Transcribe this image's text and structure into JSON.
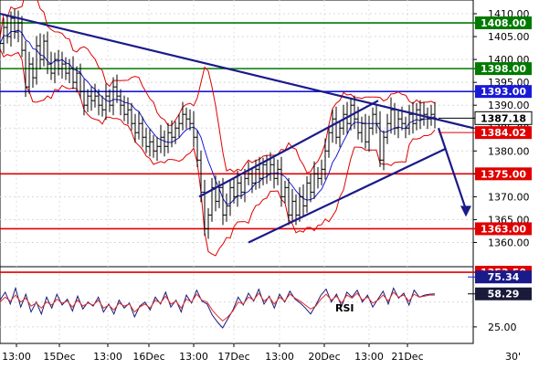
{
  "chart_data": [
    {
      "type": "line",
      "subtype": "candlestick-with-bollinger-bands",
      "x_ticks": [
        "13:00",
        "15Dec",
        "13:00",
        "16Dec",
        "13:00",
        "17Dec",
        "13:00",
        "20Dec",
        "13:00",
        "21Dec"
      ],
      "corner_label": "30'",
      "y_ticks": [
        1410,
        1405,
        1400,
        1395,
        1390,
        1385,
        1380,
        1375,
        1370,
        1365,
        1360
      ],
      "ylim": [
        1356.5,
        1411
      ],
      "grid": true,
      "horizontal_levels": [
        {
          "value": 1408.0,
          "label": "1408.00",
          "color": "#007a00"
        },
        {
          "value": 1398.0,
          "label": "1398.00",
          "color": "#007a00"
        },
        {
          "value": 1393.0,
          "label": "1393.00",
          "color": "#1a1ad6"
        },
        {
          "value": 1375.0,
          "label": "1375.00",
          "color": "#e00000"
        },
        {
          "value": 1363.0,
          "label": "1363.00",
          "color": "#e00000"
        },
        {
          "value": 1353.5,
          "label": "1353.50",
          "color": "#e00000"
        }
      ],
      "price_labels": [
        {
          "value": 1387.18,
          "label": "1387.18",
          "style": "current"
        },
        {
          "value": 1384.02,
          "label": "1384.02",
          "style": "red"
        }
      ],
      "close_series": [
        [
          0,
          1403.5
        ],
        [
          4,
          1407
        ],
        [
          8,
          1405
        ],
        [
          12,
          1409
        ],
        [
          16,
          1406
        ],
        [
          20,
          1408
        ],
        [
          24,
          1402
        ],
        [
          28,
          1394
        ],
        [
          32,
          1399
        ],
        [
          36,
          1396
        ],
        [
          40,
          1403
        ],
        [
          44,
          1400
        ],
        [
          48,
          1404
        ],
        [
          52,
          1399
        ],
        [
          56,
          1397
        ],
        [
          60,
          1400
        ],
        [
          64,
          1398
        ],
        [
          68,
          1399
        ],
        [
          72,
          1397
        ],
        [
          76,
          1398
        ],
        [
          80,
          1395
        ],
        [
          84,
          1397
        ],
        [
          88,
          1393
        ],
        [
          92,
          1390
        ],
        [
          96,
          1392
        ],
        [
          100,
          1391
        ],
        [
          104,
          1392
        ],
        [
          108,
          1390
        ],
        [
          112,
          1389
        ],
        [
          116,
          1392
        ],
        [
          120,
          1390
        ],
        [
          124,
          1394
        ],
        [
          128,
          1392
        ],
        [
          132,
          1390
        ],
        [
          136,
          1388
        ],
        [
          140,
          1389
        ],
        [
          144,
          1386
        ],
        [
          148,
          1384
        ],
        [
          152,
          1386
        ],
        [
          156,
          1383
        ],
        [
          160,
          1381
        ],
        [
          164,
          1382
        ],
        [
          168,
          1380
        ],
        [
          172,
          1381
        ],
        [
          176,
          1383
        ],
        [
          180,
          1381
        ],
        [
          184,
          1384
        ],
        [
          188,
          1383
        ],
        [
          192,
          1385
        ],
        [
          196,
          1386
        ],
        [
          200,
          1388
        ],
        [
          204,
          1387
        ],
        [
          208,
          1386
        ],
        [
          212,
          1383
        ],
        [
          216,
          1378
        ],
        [
          220,
          1371
        ],
        [
          224,
          1363
        ],
        [
          228,
          1366
        ],
        [
          232,
          1372
        ],
        [
          236,
          1369
        ],
        [
          240,
          1372
        ],
        [
          244,
          1366
        ],
        [
          248,
          1368
        ],
        [
          252,
          1372
        ],
        [
          256,
          1370
        ],
        [
          260,
          1373
        ],
        [
          264,
          1371
        ],
        [
          268,
          1374
        ],
        [
          272,
          1375
        ],
        [
          276,
          1373
        ],
        [
          280,
          1376
        ],
        [
          284,
          1374
        ],
        [
          288,
          1377
        ],
        [
          292,
          1375
        ],
        [
          296,
          1377
        ],
        [
          300,
          1374
        ],
        [
          304,
          1376
        ],
        [
          308,
          1370
        ],
        [
          312,
          1372
        ],
        [
          316,
          1366
        ],
        [
          320,
          1369
        ],
        [
          324,
          1366
        ],
        [
          328,
          1370
        ],
        [
          332,
          1368
        ],
        [
          336,
          1373
        ],
        [
          340,
          1371
        ],
        [
          344,
          1375
        ],
        [
          348,
          1374
        ],
        [
          352,
          1376
        ],
        [
          356,
          1380
        ],
        [
          360,
          1384
        ],
        [
          364,
          1387
        ],
        [
          368,
          1383
        ],
        [
          372,
          1385
        ],
        [
          376,
          1388
        ],
        [
          380,
          1386
        ],
        [
          384,
          1390
        ],
        [
          388,
          1387
        ],
        [
          392,
          1384
        ],
        [
          396,
          1386
        ],
        [
          400,
          1382
        ],
        [
          404,
          1385
        ],
        [
          408,
          1388
        ],
        [
          412,
          1386
        ],
        [
          416,
          1378
        ],
        [
          420,
          1383
        ],
        [
          424,
          1386
        ],
        [
          428,
          1389
        ],
        [
          432,
          1385
        ],
        [
          436,
          1387
        ],
        [
          440,
          1386
        ],
        [
          444,
          1385
        ],
        [
          448,
          1388
        ],
        [
          452,
          1386
        ],
        [
          456,
          1389
        ],
        [
          460,
          1387
        ],
        [
          464,
          1388
        ],
        [
          468,
          1387
        ],
        [
          472,
          1388
        ],
        [
          476,
          1387.18
        ]
      ],
      "trendlines": [
        {
          "from": [
            0,
            1410
          ],
          "to": [
            518,
            1385
          ]
        },
        {
          "from": [
            218,
            1370
          ],
          "to": [
            414,
            1391
          ]
        },
        {
          "from": [
            272,
            1360
          ],
          "to": [
            488,
            1380.5
          ]
        }
      ],
      "projection_arrow": {
        "from": [
          480,
          1385
        ],
        "to": [
          510,
          1366
        ]
      }
    },
    {
      "type": "line",
      "indicator_name": "RSI",
      "y_ticks": [
        25.0
      ],
      "ylim": [
        12,
        82
      ],
      "value_labels": [
        {
          "value": 75.34,
          "label": "75.34",
          "style": "blue"
        },
        {
          "value": 58.29,
          "label": "58.29",
          "style": "dark"
        }
      ],
      "series": [
        {
          "values": [
            52,
            60,
            48,
            64,
            45,
            58,
            40,
            50,
            38,
            55,
            44,
            58,
            47,
            53,
            41,
            56,
            43,
            50,
            46,
            55,
            40,
            48,
            38,
            52,
            44,
            49,
            35,
            46,
            50,
            42,
            55,
            48,
            60,
            45,
            52,
            40,
            57,
            49,
            62,
            51,
            48,
            37,
            30,
            24,
            33,
            42,
            55,
            47,
            59,
            51,
            63,
            48,
            56,
            44,
            58,
            50,
            61,
            53,
            49,
            44,
            38,
            47,
            57,
            63,
            50,
            58,
            46,
            60,
            55,
            62,
            50,
            57,
            45,
            53,
            61,
            48,
            64,
            54,
            59,
            47,
            62,
            55,
            57,
            58,
            58.29
          ],
          "color": "#1a1a7a"
        },
        {
          "values": [
            50,
            55,
            51,
            57,
            50,
            54,
            46,
            49,
            44,
            50,
            47,
            53,
            49,
            51,
            45,
            52,
            46,
            49,
            47,
            52,
            44,
            47,
            42,
            49,
            46,
            48,
            40,
            45,
            48,
            44,
            52,
            49,
            56,
            48,
            51,
            44,
            53,
            50,
            58,
            52,
            50,
            42,
            36,
            31,
            35,
            41,
            50,
            48,
            55,
            52,
            59,
            51,
            55,
            48,
            55,
            51,
            58,
            54,
            51,
            47,
            43,
            46,
            53,
            58,
            52,
            56,
            49,
            57,
            54,
            59,
            52,
            55,
            49,
            52,
            57,
            51,
            60,
            55,
            57,
            51,
            58,
            55,
            56,
            57,
            57
          ],
          "color": "#e03030"
        }
      ],
      "guide_levels": [
        25,
        50
      ]
    }
  ]
}
